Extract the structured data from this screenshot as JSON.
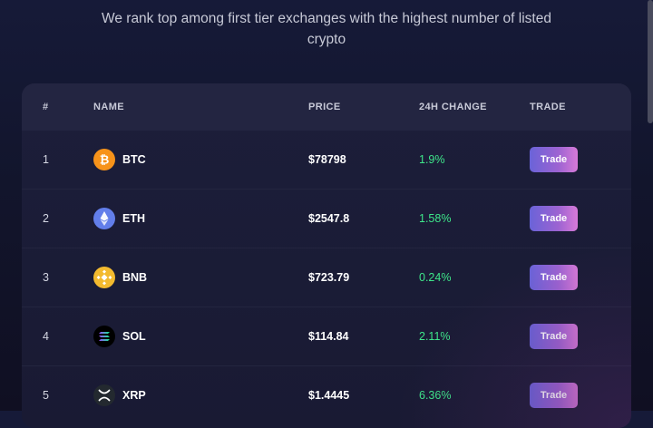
{
  "intro": {
    "line1": "We rank top among first tier exchanges with the highest number of listed",
    "line2": "crypto"
  },
  "table": {
    "headers": {
      "rank": "#",
      "name": "NAME",
      "price": "PRICE",
      "change": "24H CHANGE",
      "trade": "TRADE"
    },
    "rows": [
      {
        "rank": "1",
        "symbol": "BTC",
        "price": "$78798",
        "change": "1.9%",
        "trade_label": "Trade",
        "icon": "bitcoin-icon",
        "icon_color": "#f7931a"
      },
      {
        "rank": "2",
        "symbol": "ETH",
        "price": "$2547.8",
        "change": "1.58%",
        "trade_label": "Trade",
        "icon": "ethereum-icon",
        "icon_color": "#627eea"
      },
      {
        "rank": "3",
        "symbol": "BNB",
        "price": "$723.79",
        "change": "0.24%",
        "trade_label": "Trade",
        "icon": "bnb-icon",
        "icon_color": "#f3ba2f"
      },
      {
        "rank": "4",
        "symbol": "SOL",
        "price": "$114.84",
        "change": "2.11%",
        "trade_label": "Trade",
        "icon": "solana-icon",
        "icon_color": "#000000"
      },
      {
        "rank": "5",
        "symbol": "XRP",
        "price": "$1.4445",
        "change": "6.36%",
        "trade_label": "Trade",
        "icon": "xrp-icon",
        "icon_color": "#23292f"
      }
    ]
  },
  "colors": {
    "positive_change": "#3ee68a",
    "button_gradient_start": "#6a63d8",
    "button_gradient_end": "#d77ad8"
  }
}
